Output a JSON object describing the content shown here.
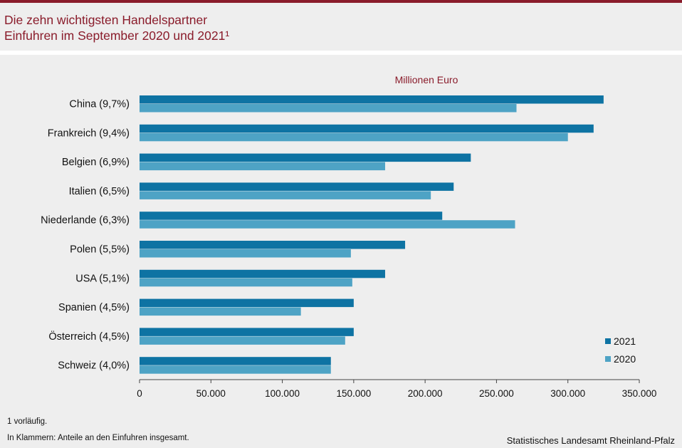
{
  "header": {
    "title_line1": "Die zehn wichtigsten Handelspartner",
    "title_line2": "Einfuhren im September 2020 und 2021¹"
  },
  "colors": {
    "accent": "#8a1c2b",
    "series_2021": "#0e73a3",
    "series_2020": "#4ea3c5"
  },
  "chart_data": {
    "type": "bar",
    "orientation": "horizontal",
    "unit_label": "Millionen  Euro",
    "categories": [
      "China (9,7%)",
      "Frankreich (9,4%)",
      "Belgien (6,9%)",
      "Italien (6,5%)",
      "Niederlande (6,3%)",
      "Polen (5,5%)",
      "USA (5,1%)",
      "Spanien (4,5%)",
      "Österreich (4,5%)",
      "Schweiz (4,0%)"
    ],
    "series": [
      {
        "name": "2021",
        "values": [
          325000,
          318000,
          232000,
          220000,
          212000,
          186000,
          172000,
          150000,
          150000,
          134000
        ]
      },
      {
        "name": "2020",
        "values": [
          264000,
          300000,
          172000,
          204000,
          263000,
          148000,
          149000,
          113000,
          144000,
          134000
        ]
      }
    ],
    "xlim": [
      0,
      350000
    ],
    "xticks": [
      0,
      50000,
      100000,
      150000,
      200000,
      250000,
      300000,
      350000
    ],
    "xtick_labels": [
      "0",
      "50.000",
      "100.000",
      "150.000",
      "200.000",
      "250.000",
      "300.000",
      "350.000"
    ],
    "legend": [
      "2021",
      "2020"
    ],
    "legend_position": "bottom-right"
  },
  "footnotes": {
    "note1": "1 vorläufig.",
    "note2": "In Klammern:  Anteile an den Einfuhren  insgesamt."
  },
  "source": "Statistisches  Landesamt  Rheinland-Pfalz"
}
